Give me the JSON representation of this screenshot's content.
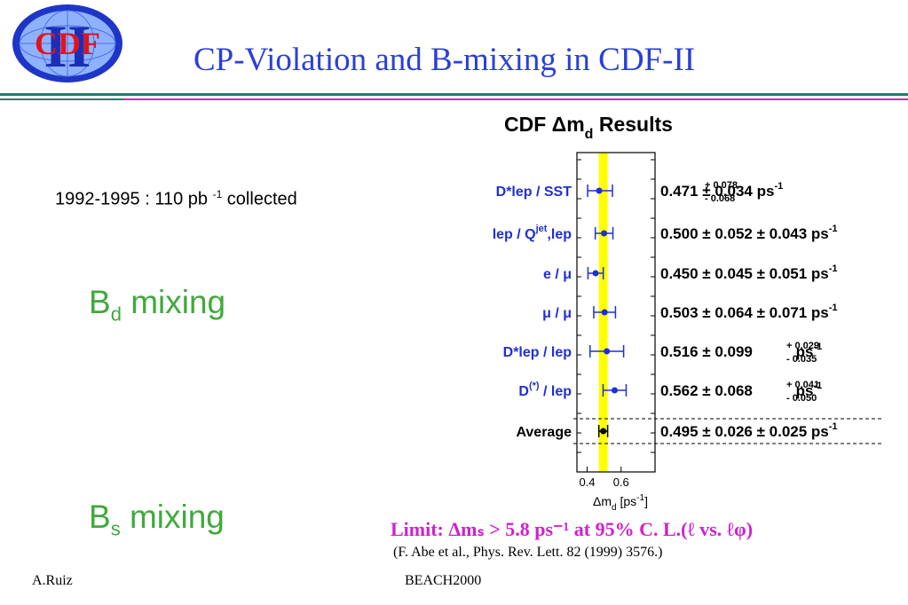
{
  "slide": {
    "title": "CP-Violation and B-mixing in CDF-II",
    "logo_text": "CDF",
    "logo_numeral": "II",
    "collected": {
      "text": "1992-1995 : 110 pb",
      "sup": "-1",
      "tail": " collected"
    },
    "bd_mixing": {
      "base": "B",
      "sub": "d",
      "tail": " mixing"
    },
    "bs_mixing": {
      "base": "B",
      "sub": "s",
      "tail": " mixing"
    },
    "limit": "Limit: Δmₛ > 5.8 ps⁻¹ at 95% C. L.(ℓ vs. ℓφ)",
    "reference": "(F. Abe et al., Phys. Rev. Lett. 82 (1999) 3576.)",
    "author": "A.Ruiz",
    "conference": "BEACH2000",
    "colors": {
      "title": "#2a3fd9",
      "mixing": "#3faa3b",
      "limit": "#d21fce",
      "band": "#ffff00",
      "points": "#1f2fd6",
      "rule": "#1d7d6e"
    }
  },
  "chart_data": {
    "type": "scatter",
    "title": "CDF Δm",
    "title_sub": "d",
    "title_tail": " Results",
    "xlabel": "Δm",
    "xlabel_sub": "d",
    "xlabel_unit": " [ps",
    "xlabel_unit_sup": "-1",
    "xlabel_unit_close": "]",
    "xlim": [
      0.34,
      0.8
    ],
    "xticks": [
      0.4,
      0.6
    ],
    "xtick_labels": [
      "0.4",
      "0.6"
    ],
    "average_band": [
      0.469,
      0.521
    ],
    "measurements": [
      {
        "label": "D*lep / SST",
        "label_sup": "",
        "label_tail": "",
        "value": 0.471,
        "err_lo": 0.068,
        "err_hi": 0.078,
        "text": "0.471",
        "stat_hi": "+ 0.078",
        "stat_lo": "- 0.068",
        "syst": "0.034",
        "syst_hi": "",
        "syst_lo": "",
        "unit": "ps",
        "unit_sup": "-1"
      },
      {
        "label": "lep / Q",
        "label_sup": "jet",
        "label_tail": ",lep",
        "value": 0.5,
        "err_lo": 0.052,
        "err_hi": 0.052,
        "text": "0.500",
        "stat": "0.052",
        "syst": "0.043",
        "unit": "ps",
        "unit_sup": "-1"
      },
      {
        "label": "e / μ",
        "label_sup": "",
        "label_tail": "",
        "value": 0.45,
        "err_lo": 0.045,
        "err_hi": 0.045,
        "text": "0.450",
        "stat": "0.045",
        "syst": "0.051",
        "unit": "ps",
        "unit_sup": "-1"
      },
      {
        "label": "μ / μ",
        "label_sup": "",
        "label_tail": "",
        "value": 0.503,
        "err_lo": 0.064,
        "err_hi": 0.064,
        "text": "0.503",
        "stat": "0.064",
        "syst": "0.071",
        "unit": "ps",
        "unit_sup": "-1"
      },
      {
        "label": "D*lep / lep",
        "label_sup": "",
        "label_tail": "",
        "value": 0.516,
        "err_lo": 0.099,
        "err_hi": 0.099,
        "text": "0.516",
        "stat": "0.099",
        "syst_hi": "+ 0.029",
        "syst_lo": "- 0.035",
        "unit": "ps",
        "unit_sup": "-1"
      },
      {
        "label": "D",
        "label_sup": "(*)",
        "label_tail": " / lep",
        "value": 0.562,
        "err_lo": 0.068,
        "err_hi": 0.068,
        "text": "0.562",
        "stat": "0.068",
        "syst_hi": "+ 0.041",
        "syst_lo": "- 0.050",
        "unit": "ps",
        "unit_sup": "-1"
      }
    ],
    "average": {
      "label": "Average",
      "value": 0.495,
      "err": 0.026,
      "text": "0.495",
      "stat": "0.026",
      "syst": "0.025",
      "unit": "ps",
      "unit_sup": "-1"
    }
  }
}
